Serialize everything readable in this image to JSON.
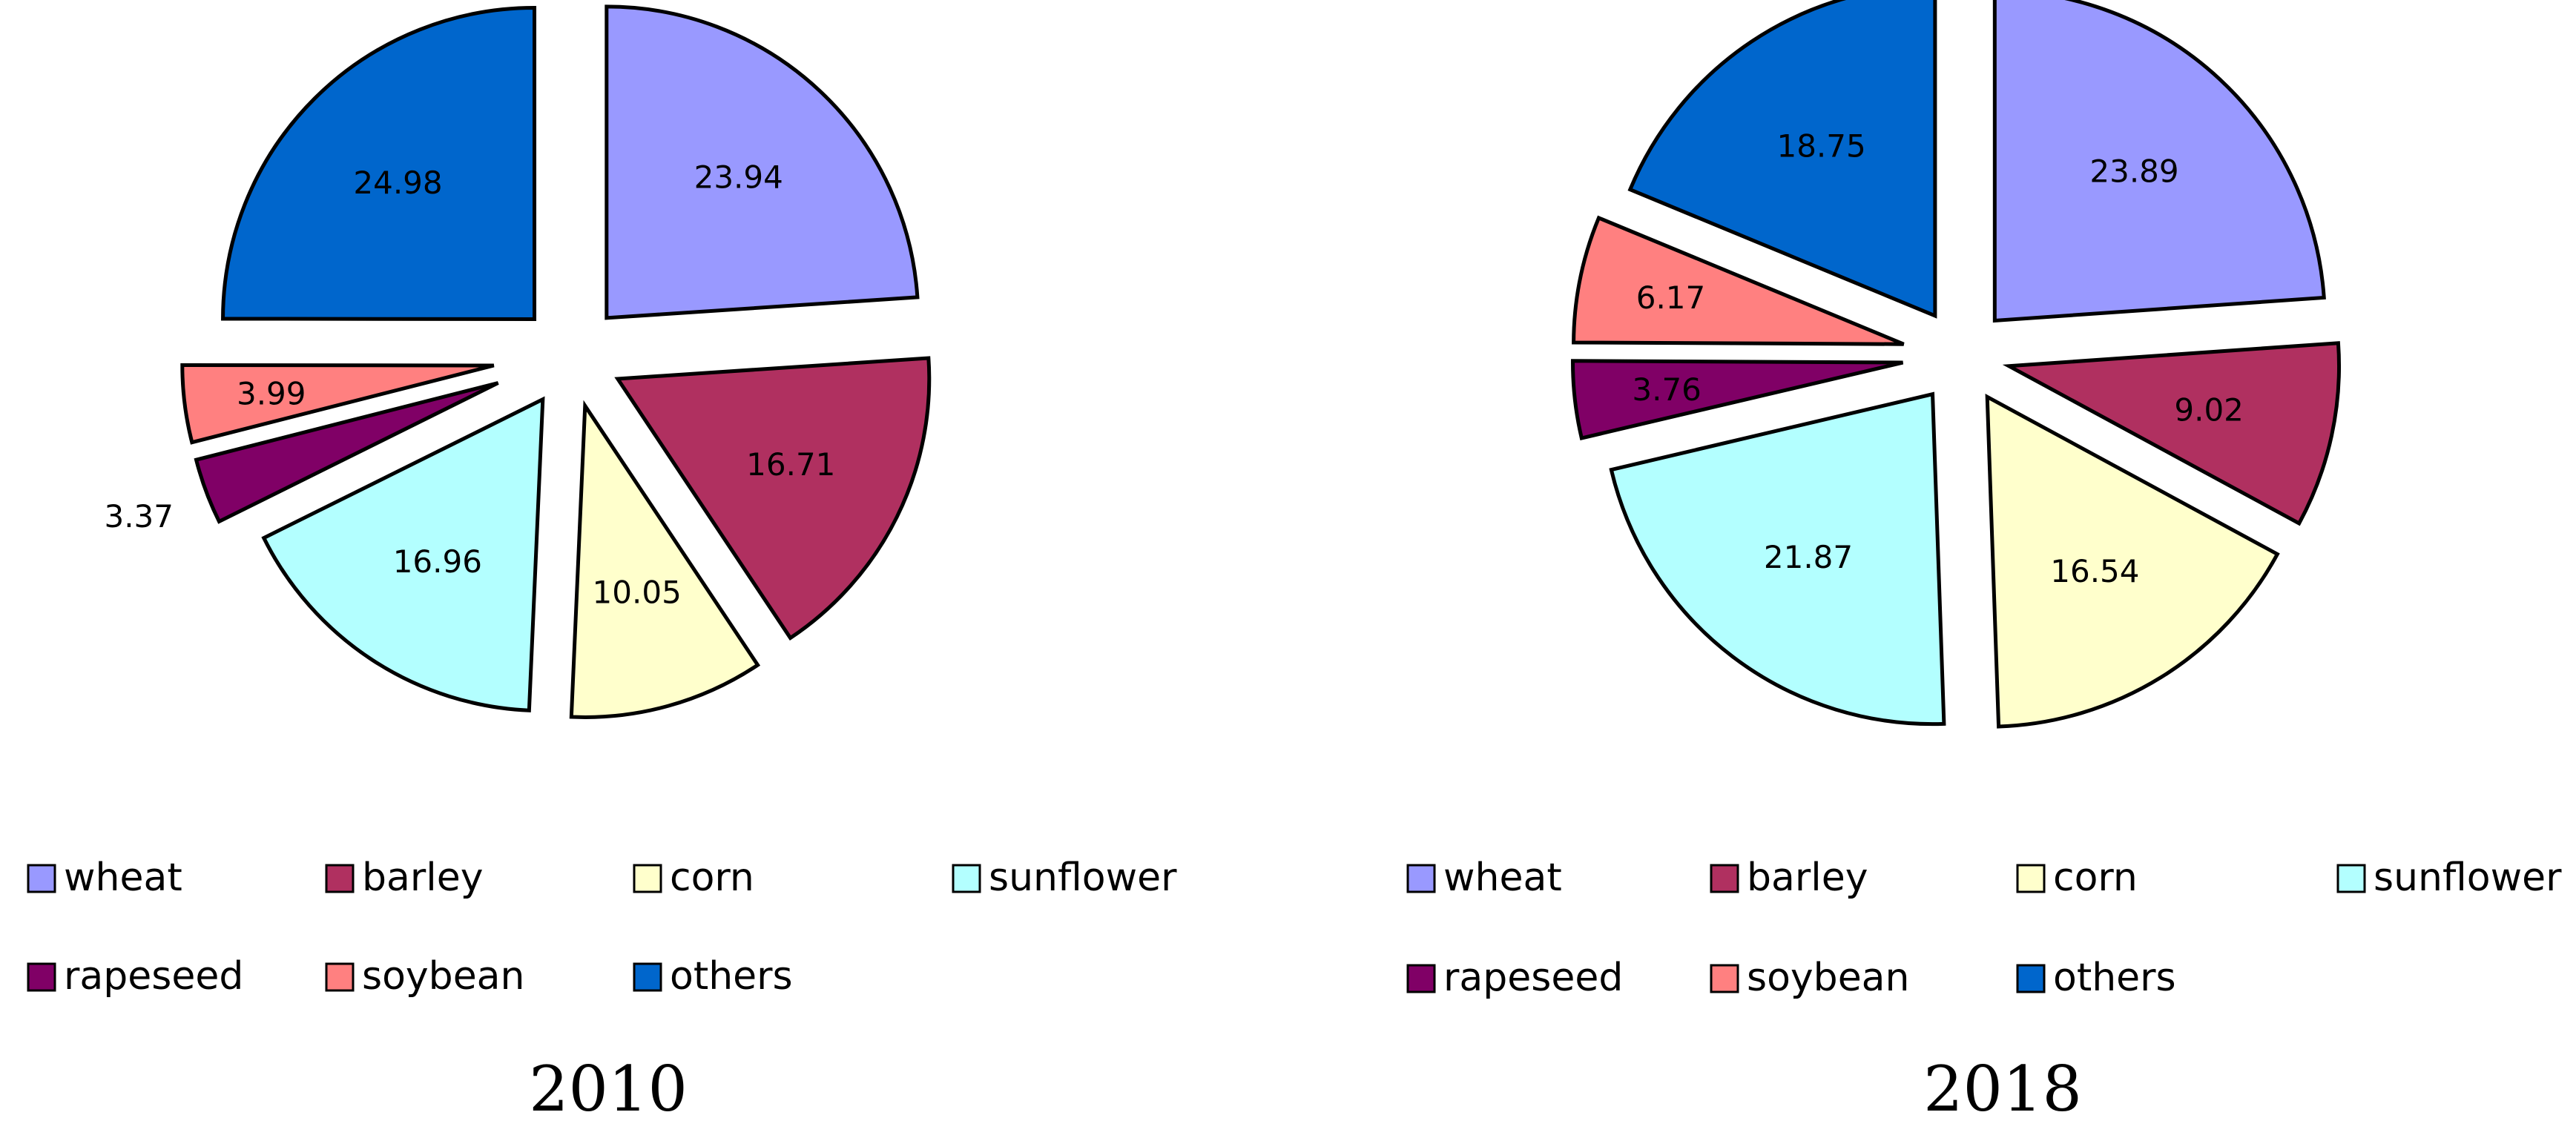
{
  "chart_data": [
    {
      "type": "pie",
      "title": "2010",
      "legend_position": "bottom",
      "slices": [
        {
          "name": "wheat",
          "value": 23.94,
          "label": "23.94",
          "color": "#9999FF"
        },
        {
          "name": "barley",
          "value": 16.71,
          "label": "16.71",
          "color": "#B03060"
        },
        {
          "name": "corn",
          "value": 10.05,
          "label": "10.05",
          "color": "#FFFFCC"
        },
        {
          "name": "sunflower",
          "value": 16.96,
          "label": "16.96",
          "color": "#B3FFFF"
        },
        {
          "name": "rapeseed",
          "value": 3.37,
          "label": "3.37",
          "color": "#800066"
        },
        {
          "name": "soybean",
          "value": 3.99,
          "label": "3.99",
          "color": "#FF8080"
        },
        {
          "name": "others",
          "value": 24.98,
          "label": "24.98",
          "color": "#0066CC"
        }
      ]
    },
    {
      "type": "pie",
      "title": "2018",
      "legend_position": "bottom",
      "slices": [
        {
          "name": "wheat",
          "value": 23.89,
          "label": "23.89",
          "color": "#9999FF"
        },
        {
          "name": "barley",
          "value": 9.02,
          "label": "9.02",
          "color": "#B03060"
        },
        {
          "name": "corn",
          "value": 16.54,
          "label": "16.54",
          "color": "#FFFFCC"
        },
        {
          "name": "sunflower",
          "value": 21.87,
          "label": "21.87",
          "color": "#B3FFFF"
        },
        {
          "name": "rapeseed",
          "value": 3.76,
          "label": "3.76",
          "color": "#800066"
        },
        {
          "name": "soybean",
          "value": 6.17,
          "label": "6.17",
          "color": "#FF8080"
        },
        {
          "name": "others",
          "value": 18.75,
          "label": "18.75",
          "color": "#0066CC"
        }
      ]
    }
  ]
}
